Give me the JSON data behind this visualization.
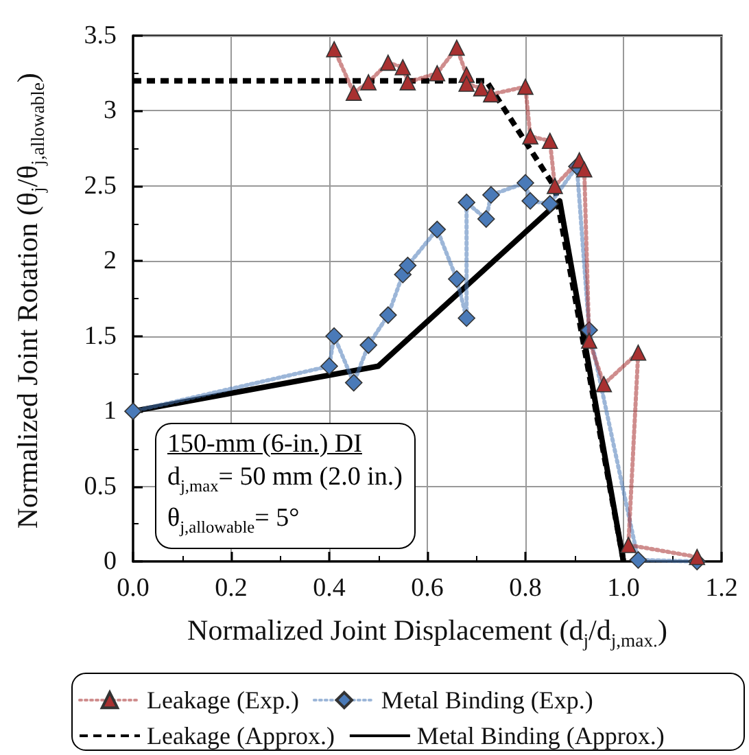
{
  "chart_data": {
    "type": "line",
    "xlabel": "Normalized Joint Displacement (d$_{j}$/d$_{j,max.}$)",
    "ylabel": "Normalized Joint Rotation (θ$_{j}$/θ$_{j,allowable}$)",
    "xlim": [
      0,
      1.2
    ],
    "xticks": [
      {
        "value": 0,
        "label": "0.0"
      },
      {
        "value": 0.2,
        "label": "0.2"
      },
      {
        "value": 0.4,
        "label": "0.4"
      },
      {
        "value": 0.6,
        "label": "0.6"
      },
      {
        "value": 0.8,
        "label": "0.8"
      },
      {
        "value": 1,
        "label": "1.0"
      },
      {
        "value": 1.2,
        "label": "1.2"
      }
    ],
    "ylim": [
      0,
      3.5
    ],
    "yticks": [
      0,
      0.5,
      1,
      1.5,
      2,
      2.5,
      3,
      3.5
    ],
    "grid": true,
    "legend": "bottom",
    "annotations": [
      "150-mm (6-in.) DI",
      "d$_{j,max}$= 50 mm (2.0 in.)",
      "θ$_{j,allowable}$= 5°"
    ],
    "series": [
      {
        "name": "Leakage (Exp.)",
        "color": "#a83030",
        "marker": "triangle",
        "line_style": "dotted",
        "x": [
          0.41,
          0.45,
          0.48,
          0.52,
          0.55,
          0.56,
          0.62,
          0.66,
          0.68,
          0.68,
          0.71,
          0.73,
          0.8,
          0.81,
          0.85,
          0.86,
          0.91,
          0.92,
          0.93,
          0.96,
          1.03,
          1.01,
          1.15
        ],
        "values": [
          3.41,
          3.12,
          3.19,
          3.32,
          3.29,
          3.19,
          3.25,
          3.42,
          3.24,
          3.18,
          3.15,
          3.11,
          3.16,
          2.83,
          2.8,
          2.5,
          2.67,
          2.61,
          1.47,
          1.18,
          1.39,
          0.11,
          0.03
        ]
      },
      {
        "name": "Metal Binding (Exp.)",
        "color": "#4a7ab8",
        "marker": "diamond",
        "line_style": "dotted",
        "x": [
          0,
          0.4,
          0.41,
          0.45,
          0.48,
          0.52,
          0.55,
          0.56,
          0.62,
          0.66,
          0.68,
          0.68,
          0.72,
          0.73,
          0.8,
          0.81,
          0.85,
          0.905,
          0.93,
          1.03,
          1.15
        ],
        "values": [
          1,
          1.3,
          1.5,
          1.19,
          1.44,
          1.64,
          1.91,
          1.97,
          2.21,
          1.88,
          1.62,
          2.39,
          2.28,
          2.44,
          2.52,
          2.4,
          2.38,
          2.63,
          1.54,
          0.01,
          0
        ]
      },
      {
        "name": "Leakage (Approx.)",
        "color": "#000000",
        "marker": "none",
        "line_style": "dashed",
        "x": [
          0,
          0.72,
          0.86,
          1.0
        ],
        "values": [
          3.2,
          3.2,
          2.49,
          0
        ]
      },
      {
        "name": "Metal Binding (Approx.)",
        "color": "#000000",
        "marker": "none",
        "line_style": "solid",
        "x": [
          0,
          0.5,
          0.87,
          1.0
        ],
        "values": [
          1,
          1.3,
          2.4,
          0
        ]
      }
    ]
  }
}
